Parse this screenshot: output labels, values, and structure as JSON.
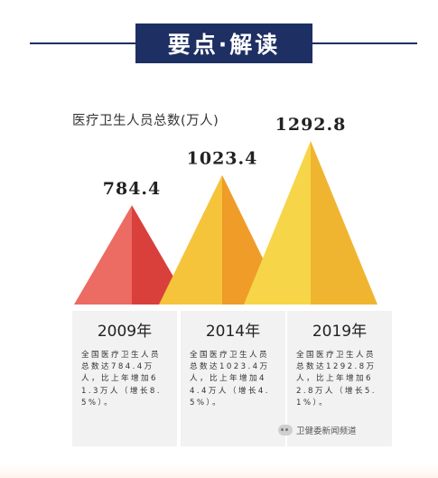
{
  "header": {
    "title": "要点·解读"
  },
  "chart_data": {
    "type": "bar",
    "title": "医疗卫生人员总数(万人)",
    "categories": [
      "2009年",
      "2014年",
      "2019年"
    ],
    "values": [
      784.4,
      1023.4,
      1292.8
    ],
    "value_labels": [
      "784.4",
      "1023.4",
      "1292.8"
    ],
    "series_colors": [
      {
        "light": "#ec6b63",
        "dark": "#d9403c"
      },
      {
        "light": "#f5c43b",
        "dark": "#ef9c28"
      },
      {
        "light": "#f7d548",
        "dark": "#f0b530"
      }
    ],
    "ylim": [
      0,
      1300
    ]
  },
  "cards": [
    {
      "year": "2009年",
      "text": "全国医疗卫生人员总数达784.4万人，比上年增加61.3万人（增长8.5%）。"
    },
    {
      "year": "2014年",
      "text": "全国医疗卫生人员总数达1023.4万人，比上年增加44.4万人（增长4.5%）。"
    },
    {
      "year": "2019年",
      "text": "全国医疗卫生人员总数达1292.8万人，比上年增加62.8万人（增长5.1%）。"
    }
  ],
  "watermark": {
    "text": "卫健委新闻频道",
    "icon": "wechat-icon"
  }
}
